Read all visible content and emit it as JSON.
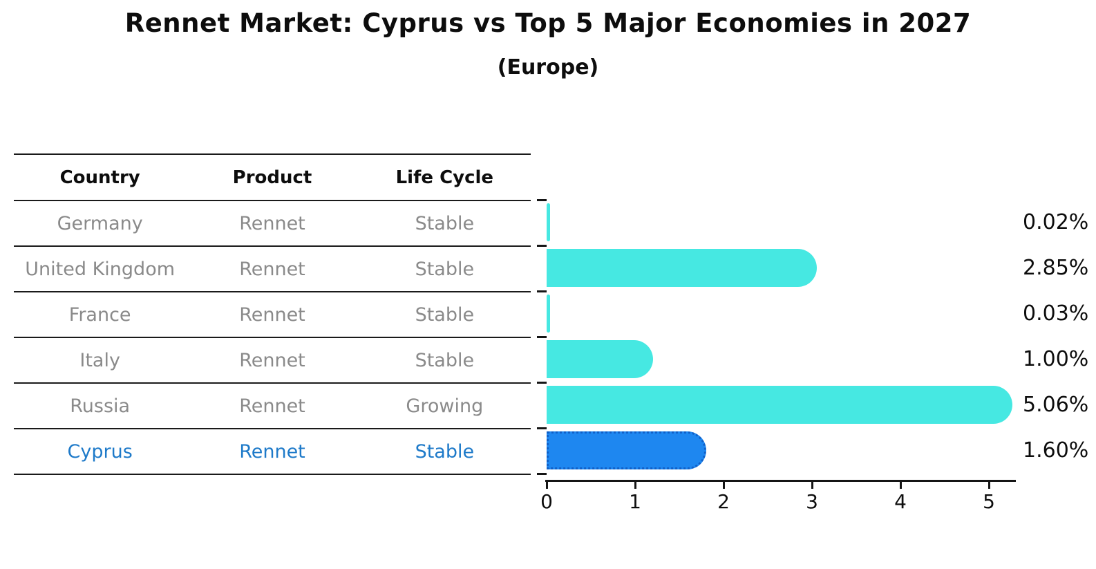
{
  "title": "Rennet Market: Cyprus vs Top 5 Major Economies in 2027",
  "subtitle": "(Europe)",
  "table": {
    "headers": [
      "Country",
      "Product",
      "Life Cycle"
    ],
    "rows": [
      {
        "country": "Germany",
        "product": "Rennet",
        "life_cycle": "Stable",
        "highlighted": false
      },
      {
        "country": "United Kingdom",
        "product": "Rennet",
        "life_cycle": "Stable",
        "highlighted": false
      },
      {
        "country": "France",
        "product": "Rennet",
        "life_cycle": "Stable",
        "highlighted": false
      },
      {
        "country": "Italy",
        "product": "Rennet",
        "life_cycle": "Stable",
        "highlighted": false
      },
      {
        "country": "Russia",
        "product": "Rennet",
        "life_cycle": "Growing",
        "highlighted": false
      },
      {
        "country": "Cyprus",
        "product": "Rennet",
        "life_cycle": "Stable",
        "highlighted": true
      }
    ]
  },
  "chart_data": {
    "type": "bar",
    "orientation": "horizontal",
    "title": "Rennet Market: Cyprus vs Top 5 Major Economies in 2027",
    "subtitle": "(Europe)",
    "categories": [
      "Germany",
      "United Kingdom",
      "France",
      "Italy",
      "Russia",
      "Cyprus"
    ],
    "values": [
      0.02,
      2.85,
      0.03,
      1.0,
      5.06,
      1.6
    ],
    "value_labels": [
      "0.02%",
      "2.85%",
      "0.03%",
      "1.00%",
      "5.06%",
      "1.60%"
    ],
    "highlight_index": 5,
    "x_ticks": [
      "0",
      "1",
      "2",
      "3",
      "4",
      "5"
    ],
    "xlim": [
      0,
      5.3
    ],
    "grid": false,
    "legend": false,
    "bar_color": "#46e8e2",
    "highlight_bar_color": "#1e87f0",
    "highlight_border_color": "#1060c8",
    "highlight_text_color": "#1e7ac9",
    "row_text_color": "#8a8a8a",
    "axis_color": "#151515"
  }
}
